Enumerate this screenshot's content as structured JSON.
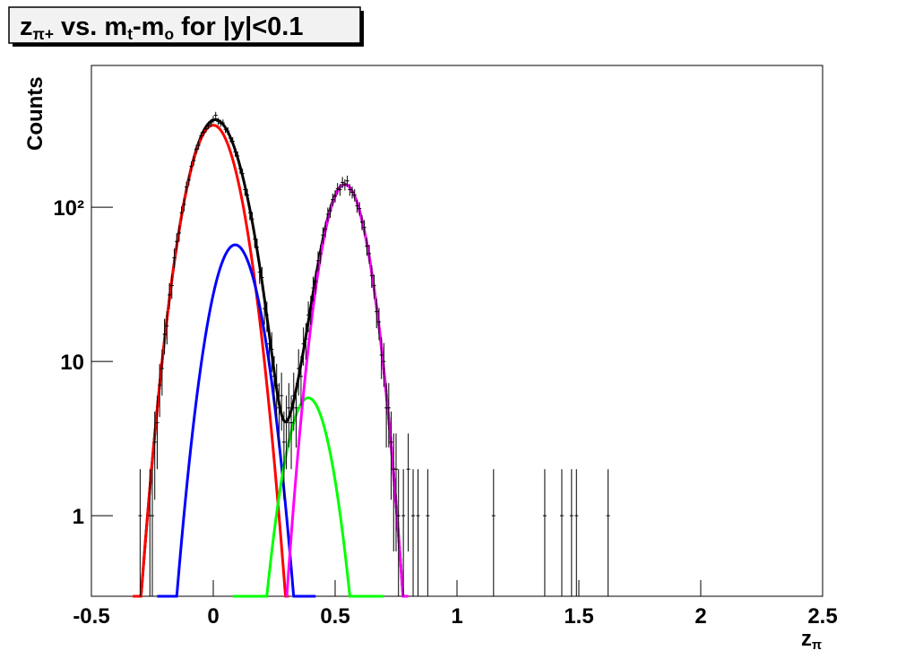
{
  "chart_data": {
    "type": "histogram-fit",
    "title": [
      {
        "text": "z"
      },
      {
        "text": "π+",
        "sub": true
      },
      {
        "text": " vs. m"
      },
      {
        "text": "t",
        "sub": true
      },
      {
        "text": "-m"
      },
      {
        "text": "o",
        "sub": true
      },
      {
        "text": " for |y|<0.1"
      }
    ],
    "x_label": [
      {
        "text": "z"
      },
      {
        "text": "π",
        "sub": true
      }
    ],
    "y_label": "Counts",
    "log_y": true,
    "grid": false,
    "xlim": [
      -0.5,
      2.5
    ],
    "ylim": [
      0.3,
      830
    ],
    "xticks": [
      -0.5,
      0,
      0.5,
      1,
      1.5,
      2,
      2.5
    ],
    "yticks": [
      1,
      10,
      {
        "value": 100,
        "label": "10²"
      }
    ],
    "color": "#000000",
    "x": [
      -0.3,
      -0.26,
      -0.25,
      -0.24,
      -0.23,
      -0.22,
      -0.21,
      -0.2,
      -0.19,
      -0.18,
      -0.17,
      -0.16,
      -0.15,
      -0.14,
      -0.13,
      -0.12,
      -0.11,
      -0.1,
      -0.09,
      -0.08,
      -0.07,
      -0.06,
      -0.05,
      -0.04,
      -0.03,
      -0.02,
      -0.01,
      0.0,
      0.01,
      0.02,
      0.03,
      0.04,
      0.05,
      0.06,
      0.07,
      0.08,
      0.09,
      0.1,
      0.11,
      0.12,
      0.13,
      0.14,
      0.15,
      0.16,
      0.17,
      0.18,
      0.19,
      0.2,
      0.21,
      0.22,
      0.23,
      0.24,
      0.25,
      0.26,
      0.27,
      0.28,
      0.29,
      0.3,
      0.31,
      0.32,
      0.33,
      0.34,
      0.35,
      0.36,
      0.37,
      0.38,
      0.39,
      0.4,
      0.41,
      0.42,
      0.43,
      0.44,
      0.45,
      0.46,
      0.47,
      0.48,
      0.49,
      0.5,
      0.51,
      0.52,
      0.53,
      0.54,
      0.55,
      0.56,
      0.57,
      0.58,
      0.59,
      0.6,
      0.61,
      0.62,
      0.63,
      0.64,
      0.65,
      0.66,
      0.67,
      0.68,
      0.69,
      0.7,
      0.71,
      0.72,
      0.73,
      0.74,
      0.75,
      0.76,
      0.78,
      0.8,
      0.82,
      0.84,
      0.88,
      1.15,
      1.36,
      1.43,
      1.47,
      1.49,
      1.62
    ],
    "values": [
      1,
      1,
      1,
      3,
      4,
      7,
      9,
      15,
      17,
      27,
      31,
      47,
      60,
      68,
      92,
      104,
      135,
      150,
      184,
      200,
      238,
      252,
      290,
      305,
      322,
      340,
      352,
      372,
      395,
      360,
      350,
      352,
      320,
      312,
      280,
      268,
      228,
      215,
      178,
      165,
      130,
      120,
      92,
      84,
      62,
      55,
      38,
      35,
      22,
      20,
      13,
      12,
      8,
      7,
      5,
      6,
      3,
      4,
      5,
      4,
      6,
      5,
      9,
      8,
      13,
      14,
      20,
      22,
      30,
      33,
      45,
      50,
      66,
      72,
      90,
      95,
      112,
      118,
      132,
      130,
      145,
      140,
      148,
      130,
      125,
      120,
      102,
      98,
      80,
      74,
      56,
      50,
      36,
      31,
      21,
      18,
      11,
      10,
      5,
      5,
      3,
      2,
      2,
      1,
      1,
      2,
      1,
      1,
      1,
      1,
      1,
      1,
      1,
      1,
      1
    ],
    "fits": [
      {
        "color": "#ff0000",
        "amplitude": 340,
        "mean": 0.0,
        "sigma": 0.079,
        "xrange": [
          -0.33,
          0.31
        ]
      },
      {
        "color": "#0000ff",
        "amplitude": 57,
        "mean": 0.09,
        "sigma": 0.074,
        "xrange": [
          -0.23,
          0.42
        ]
      },
      {
        "color": "#00ff00",
        "amplitude": 5.8,
        "mean": 0.39,
        "sigma": 0.07,
        "xrange": [
          0.08,
          0.7
        ]
      },
      {
        "color": "#ff00ff",
        "amplitude": 140,
        "mean": 0.54,
        "sigma": 0.068,
        "xrange": [
          0.3,
          0.8
        ]
      }
    ],
    "total_fit": {
      "color": "#000000",
      "xrange": [
        -0.3,
        0.8
      ]
    }
  }
}
